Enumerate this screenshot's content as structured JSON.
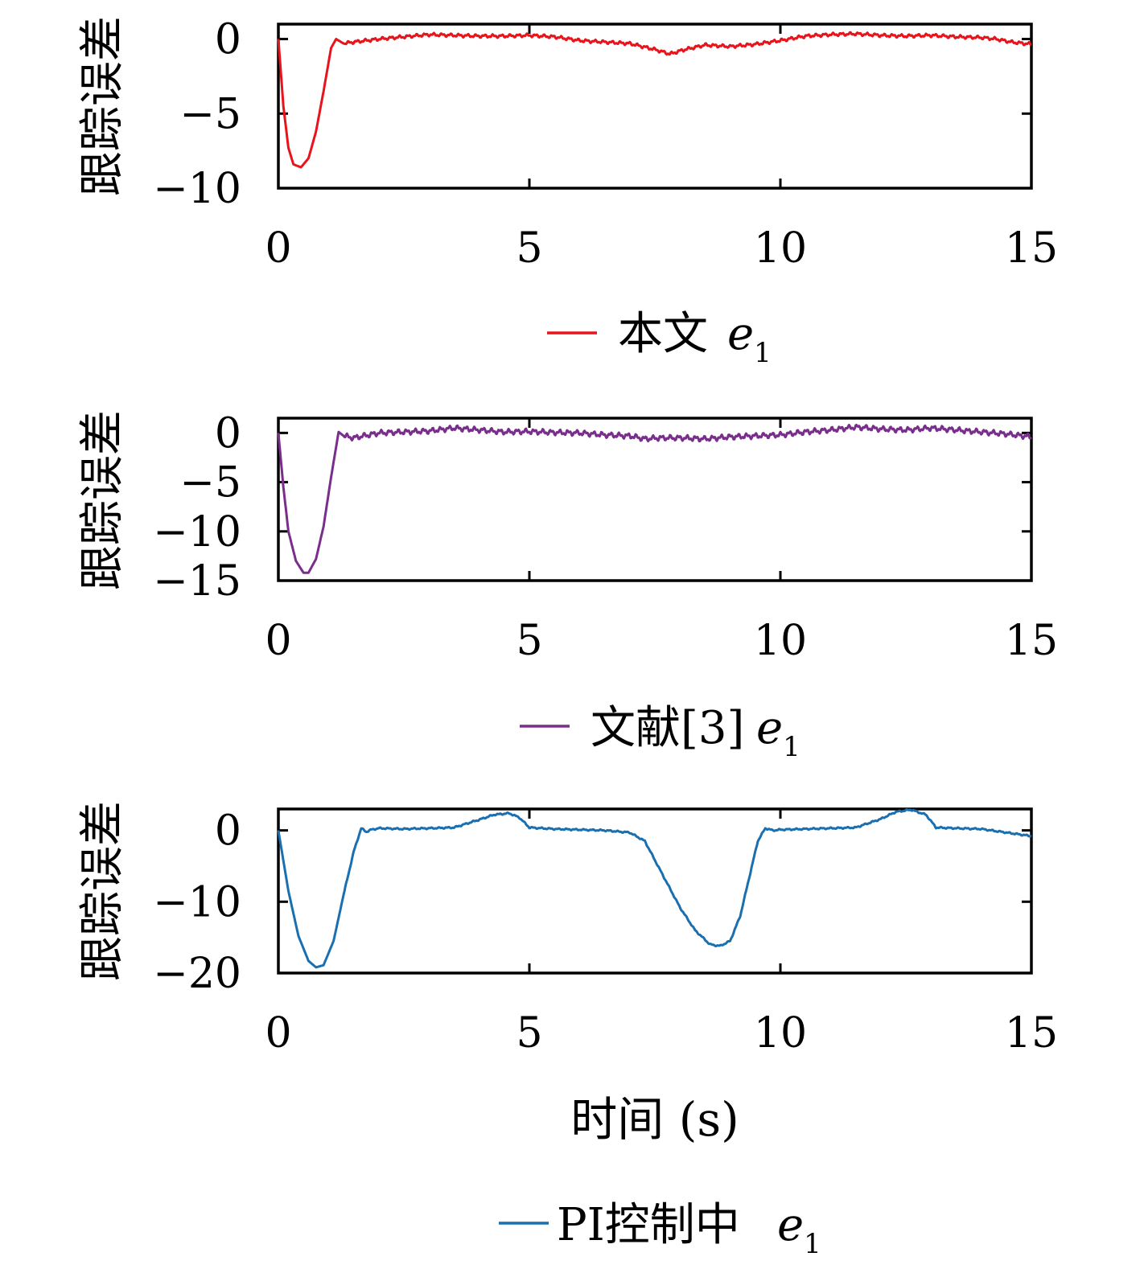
{
  "chart_data": [
    {
      "type": "line",
      "ylabel": "跟踪误差",
      "xlim": [
        0,
        15
      ],
      "ylim": [
        -10,
        1
      ],
      "xticks": [
        "0",
        "5",
        "10",
        "15"
      ],
      "yticks": [
        {
          "value": 0,
          "label": "0"
        },
        {
          "value": -5,
          "label": "−5"
        },
        {
          "value": -10,
          "label": "−10"
        }
      ],
      "legend": {
        "text": "本文",
        "symbol": "e",
        "subscript": "1"
      },
      "color": "#e8141b",
      "noise": 0.12,
      "x": [
        0,
        0.1,
        0.2,
        0.3,
        0.45,
        0.6,
        0.75,
        0.9,
        1.05,
        1.15,
        1.3,
        1.5,
        2.0,
        2.5,
        3.0,
        3.5,
        4.0,
        4.5,
        5.0,
        5.5,
        6.0,
        6.5,
        7.0,
        7.5,
        7.8,
        8.1,
        8.5,
        9.0,
        9.5,
        10.0,
        10.5,
        11.0,
        11.5,
        12.0,
        12.5,
        13.0,
        13.5,
        14.0,
        14.3,
        14.6,
        15.0
      ],
      "y": [
        0,
        -4.5,
        -7.3,
        -8.4,
        -8.6,
        -8.0,
        -6.2,
        -3.5,
        -0.6,
        0.0,
        -0.3,
        -0.2,
        0.0,
        0.15,
        0.3,
        0.25,
        0.2,
        0.2,
        0.25,
        0.15,
        -0.1,
        -0.2,
        -0.3,
        -0.7,
        -1.0,
        -0.7,
        -0.4,
        -0.5,
        -0.35,
        -0.1,
        0.2,
        0.3,
        0.35,
        0.25,
        0.2,
        0.25,
        0.15,
        0.1,
        0.0,
        -0.2,
        -0.35
      ]
    },
    {
      "type": "line",
      "ylabel": "跟踪误差",
      "xlim": [
        0,
        15
      ],
      "ylim": [
        -15,
        1.5
      ],
      "xticks": [
        "0",
        "5",
        "10",
        "15"
      ],
      "yticks": [
        {
          "value": 0,
          "label": "0"
        },
        {
          "value": -5,
          "label": "−5"
        },
        {
          "value": -10,
          "label": "−10"
        },
        {
          "value": -15,
          "label": "−15"
        }
      ],
      "legend": {
        "text": "文献[3]",
        "symbol": "e",
        "subscript": "1"
      },
      "color": "#7a2e8c",
      "noise": 0.3,
      "x": [
        0,
        0.1,
        0.2,
        0.35,
        0.5,
        0.6,
        0.75,
        0.9,
        1.05,
        1.2,
        1.3,
        1.5,
        2.0,
        2.5,
        3.0,
        3.5,
        4.0,
        4.5,
        5.0,
        5.5,
        6.0,
        6.5,
        7.0,
        7.3,
        7.6,
        8.0,
        8.5,
        9.0,
        9.5,
        10.0,
        10.5,
        11.0,
        11.5,
        12.0,
        12.5,
        13.0,
        13.5,
        14.0,
        14.5,
        15.0
      ],
      "y": [
        0,
        -5.5,
        -10.0,
        -13.0,
        -14.2,
        -14.2,
        -12.8,
        -9.5,
        -4.5,
        0.1,
        -0.3,
        -0.5,
        0.0,
        0.1,
        0.2,
        0.5,
        0.3,
        0.1,
        0.15,
        0.05,
        0.0,
        -0.2,
        -0.3,
        -0.6,
        -0.5,
        -0.5,
        -0.6,
        -0.4,
        -0.3,
        -0.2,
        0.1,
        0.3,
        0.6,
        0.4,
        0.3,
        0.5,
        0.3,
        0.1,
        -0.1,
        -0.4
      ]
    },
    {
      "type": "line",
      "ylabel": "跟踪误差",
      "xlabel": "时间 (s)",
      "xlim": [
        0,
        15
      ],
      "ylim": [
        -20,
        3
      ],
      "xticks": [
        "0",
        "5",
        "10",
        "15"
      ],
      "yticks": [
        {
          "value": 0,
          "label": "0"
        },
        {
          "value": -10,
          "label": "−10"
        },
        {
          "value": -20,
          "label": "−20"
        }
      ],
      "legend": {
        "text": "PI控制中",
        "symbol": "e",
        "subscript": "1"
      },
      "color": "#1a6fb0",
      "noise": 0.12,
      "x": [
        0,
        0.2,
        0.4,
        0.6,
        0.75,
        0.9,
        1.1,
        1.3,
        1.5,
        1.65,
        1.75,
        1.85,
        2.0,
        2.5,
        3.0,
        3.5,
        4.0,
        4.3,
        4.6,
        4.8,
        5.0,
        5.5,
        6.0,
        6.5,
        7.0,
        7.3,
        7.6,
        8.0,
        8.3,
        8.6,
        8.8,
        9.0,
        9.2,
        9.4,
        9.55,
        9.7,
        9.85,
        10.0,
        10.5,
        11.0,
        11.5,
        12.0,
        12.3,
        12.6,
        12.9,
        13.1,
        13.5,
        14.0,
        14.5,
        15.0
      ],
      "y": [
        0,
        -8.5,
        -14.8,
        -18.3,
        -19.2,
        -18.9,
        -15.5,
        -9.0,
        -3.0,
        0.3,
        -0.2,
        0.1,
        0.3,
        0.2,
        0.3,
        0.4,
        1.5,
        2.2,
        2.4,
        1.8,
        0.4,
        0.2,
        0.1,
        0.0,
        -0.3,
        -1.5,
        -5.5,
        -10.8,
        -14.0,
        -16.0,
        -16.2,
        -15.5,
        -12.0,
        -6.0,
        -1.5,
        0.3,
        0.0,
        0.1,
        0.2,
        0.3,
        0.4,
        1.6,
        2.6,
        2.9,
        2.2,
        0.4,
        0.3,
        0.2,
        -0.3,
        -0.8
      ]
    }
  ]
}
